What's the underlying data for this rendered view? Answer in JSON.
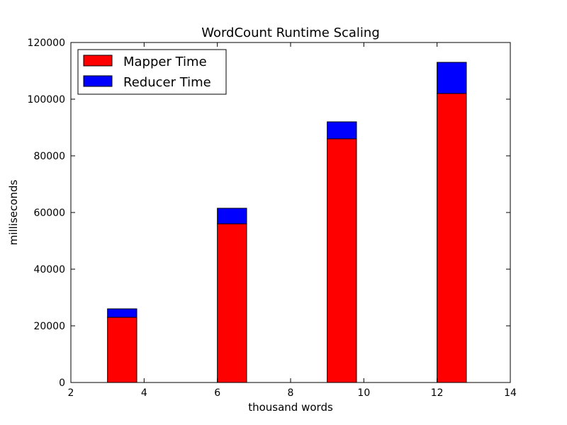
{
  "chart_data": {
    "type": "bar",
    "stacked": true,
    "title": "WordCount Runtime Scaling",
    "xlabel": "thousand words",
    "ylabel": "milliseconds",
    "xlim": [
      2,
      14
    ],
    "ylim": [
      0,
      120000
    ],
    "xticks": [
      2,
      4,
      6,
      8,
      10,
      12,
      14
    ],
    "yticks": [
      0,
      20000,
      40000,
      60000,
      80000,
      100000,
      120000
    ],
    "x": [
      3,
      6,
      9,
      12
    ],
    "bar_width": 0.8,
    "series": [
      {
        "name": "Mapper Time",
        "color": "#ff0000",
        "values": [
          23000,
          56000,
          86000,
          102000
        ]
      },
      {
        "name": "Reducer Time",
        "color": "#0000ff",
        "values": [
          3000,
          5500,
          6000,
          11000
        ]
      }
    ],
    "legend": {
      "position": "top-left"
    },
    "grid": false
  }
}
